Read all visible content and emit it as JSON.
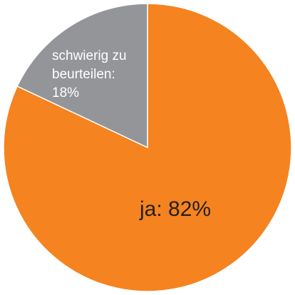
{
  "chart_data": {
    "type": "pie",
    "slices": [
      {
        "name": "ja",
        "value": 82,
        "label_lines": [
          "ja: 82%"
        ],
        "color": "#f5831f"
      },
      {
        "name": "schwierig zu beurteilen",
        "value": 18,
        "label_lines": [
          "schwierig zu",
          "beurteilen:",
          "18%"
        ],
        "color": "#939598"
      }
    ],
    "start_angle_deg": 0,
    "direction": "clockwise",
    "slice_border_color": "#ffffff",
    "label_color_ja": "#231f20",
    "label_color_other": "#ffffff"
  }
}
